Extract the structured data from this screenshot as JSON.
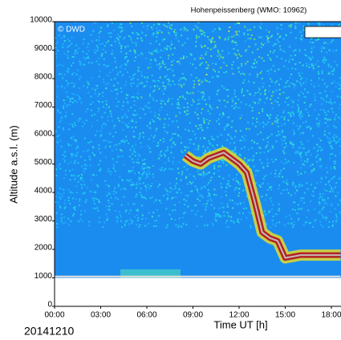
{
  "chart_data": {
    "type": "heatmap",
    "title": "Hohenpeissenberg (WMO: 10962)",
    "watermark": "© DWD",
    "date": "20141210",
    "xlabel": "Time UT [h]",
    "ylabel": "Altitude a.s.l. (m)",
    "xlim": [
      0,
      24
    ],
    "ylim": [
      0,
      10000
    ],
    "xticks": [
      {
        "value": 0,
        "label": "00:00"
      },
      {
        "value": 3,
        "label": "03:00"
      },
      {
        "value": 6,
        "label": "06:00"
      },
      {
        "value": 9,
        "label": "09:00"
      },
      {
        "value": 12,
        "label": "12:00"
      },
      {
        "value": 15,
        "label": "15:00"
      },
      {
        "value": 18,
        "label": "18:00"
      }
    ],
    "yticks": [
      0,
      1000,
      2000,
      3000,
      4000,
      5000,
      6000,
      7000,
      8000,
      9000,
      10000
    ],
    "background": "#1a8cf0",
    "series": [
      {
        "color": "#b22222",
        "x": [
          8.5,
          9.0,
          9.5,
          10.0,
          10.5,
          11.0,
          11.5,
          12.0,
          12.5,
          13.0,
          13.5,
          14.0,
          14.5,
          15.0,
          15.5,
          16.0,
          17.0,
          18.0,
          18.6
        ],
        "values": [
          5300,
          5100,
          5000,
          5200,
          5300,
          5400,
          5200,
          5000,
          4700,
          3700,
          2600,
          2400,
          2300,
          1700,
          1750,
          1800,
          1800,
          1800,
          1800
        ]
      },
      {
        "color": "#e8e0d8",
        "x": [
          0,
          3,
          6,
          9,
          12,
          15,
          18.6
        ],
        "values": [
          1050,
          1050,
          1050,
          1050,
          1050,
          1050,
          1050
        ]
      }
    ]
  }
}
